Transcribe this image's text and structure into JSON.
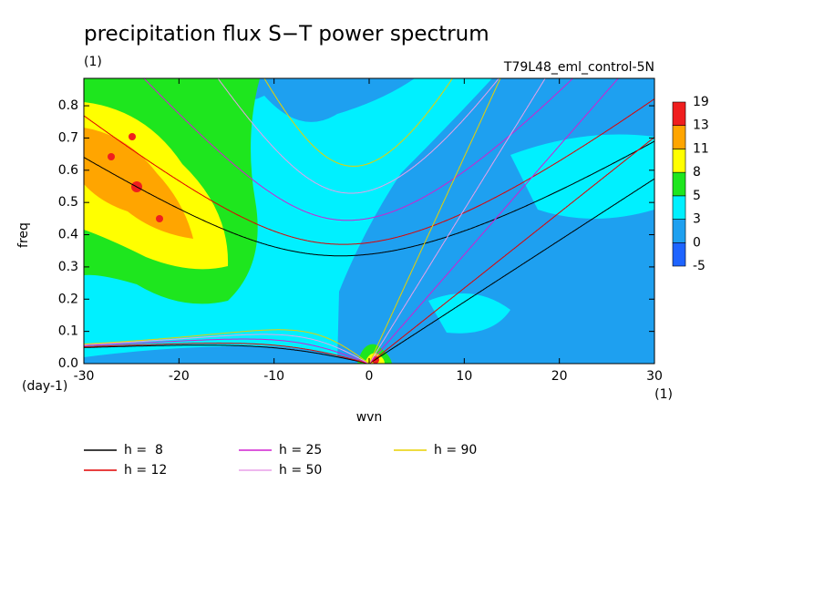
{
  "chart_data": {
    "type": "wavenumber-frequency",
    "title": "precipitation flux S−T power spectrum",
    "subtitle": "(1)",
    "dataset": "T79L48_eml_control-5N",
    "x_label": "wvn",
    "x_unit": "(1)",
    "y_label": "freq",
    "y_unit": "(day-1)",
    "xlim": [
      -30,
      30
    ],
    "xticks": [
      -30,
      -20,
      -10,
      0,
      10,
      20,
      30
    ],
    "ylim": [
      0,
      0.885
    ],
    "yticks": [
      {
        "value": 0,
        "label": "0.0"
      },
      0.1,
      0.2,
      0.3,
      0.4,
      0.5,
      0.6,
      0.7,
      0.8
    ],
    "levels": [
      -5,
      0,
      3,
      5,
      8,
      11,
      13,
      19
    ],
    "level_colors": [
      "#1e64ff",
      "#1ea0f0",
      "#00f0ff",
      "#1ee61e",
      "#ffff00",
      "#ffa500",
      "#f01e1e"
    ],
    "series": [
      {
        "name": "h =  8",
        "h": 8,
        "color": "#000000"
      },
      {
        "name": "h = 12",
        "h": 12,
        "color": "#e00000"
      },
      {
        "name": "h = 25",
        "h": 25,
        "color": "#d020d0"
      },
      {
        "name": "h = 50",
        "h": 50,
        "color": "#e8a0e8"
      },
      {
        "name": "h = 90",
        "h": 90,
        "color": "#e8d000"
      }
    ]
  }
}
